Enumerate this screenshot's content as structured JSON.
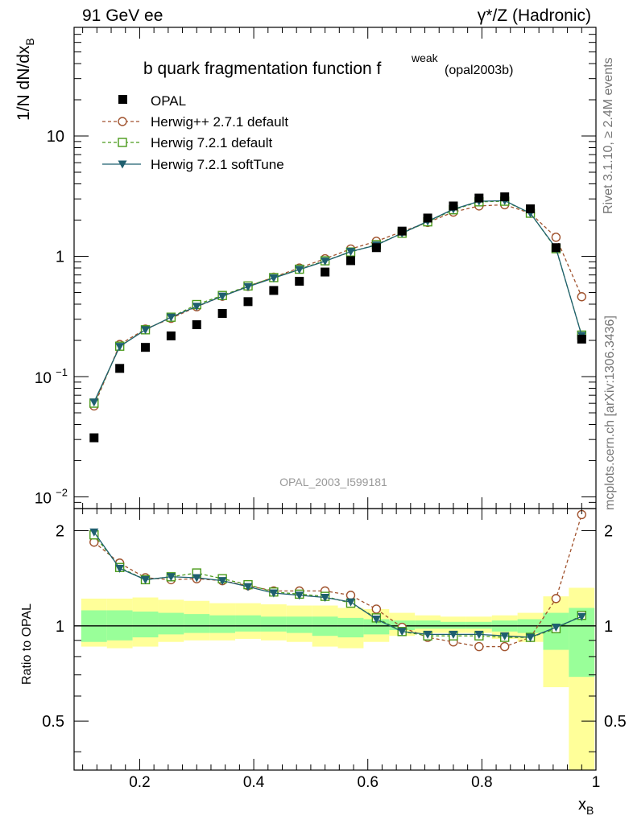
{
  "header": {
    "left": "91 GeV ee",
    "right": "γ*/Z (Hadronic)"
  },
  "side": {
    "rivet": "Rivet 3.1.10, ≥ 2.4M events",
    "mcplots": "mcplots.cern.ch [arXiv:1306.3436]"
  },
  "chart_data": {
    "type": "scatter",
    "title_main": "b quark fragmentation function f",
    "title_sup": "weak",
    "title_sub": "(opal2003b)",
    "analysis_id": "OPAL_2003_I599181",
    "ylabel_top": "1/N dN/dx",
    "ylabel_top_sub": "B",
    "ylabel_bottom": "Ratio to OPAL",
    "xlabel": "x",
    "xlabel_sub": "B",
    "x_ticks": [
      "0.2",
      "0.4",
      "0.6",
      "0.8",
      "1"
    ],
    "y_ticks_top": [
      "1",
      "10"
    ],
    "y_ticks_top_pow": [
      "10",
      "10"
    ],
    "y_ticks_top_pow_exp": [
      "−1",
      "−2"
    ],
    "y_ticks_bottom": [
      "0.5",
      "1",
      "2"
    ],
    "xlim": [
      0.085,
      1.0
    ],
    "ylim_top": [
      0.008,
      80
    ],
    "ylim_bottom": [
      0.35,
      2.35
    ],
    "log_y": true,
    "legend_position": "top-left",
    "x": [
      0.12,
      0.165,
      0.21,
      0.255,
      0.3,
      0.345,
      0.39,
      0.435,
      0.48,
      0.525,
      0.57,
      0.615,
      0.66,
      0.705,
      0.75,
      0.795,
      0.84,
      0.885,
      0.93,
      0.975
    ],
    "band_edges": [
      0.0975,
      0.1425,
      0.1875,
      0.2325,
      0.2775,
      0.3225,
      0.3675,
      0.4125,
      0.4575,
      0.5025,
      0.5475,
      0.5925,
      0.6375,
      0.6825,
      0.7275,
      0.7725,
      0.8175,
      0.8625,
      0.9075,
      0.9525,
      0.9975
    ],
    "data": {
      "name": "OPAL",
      "values": [
        0.031,
        0.117,
        0.175,
        0.218,
        0.27,
        0.335,
        0.42,
        0.52,
        0.62,
        0.74,
        0.92,
        1.18,
        1.62,
        2.08,
        2.62,
        3.05,
        3.12,
        2.48,
        1.18,
        0.205
      ],
      "stat_band": [
        [
          0.89,
          1.12
        ],
        [
          0.9,
          1.12
        ],
        [
          0.92,
          1.11
        ],
        [
          0.94,
          1.1
        ],
        [
          0.95,
          1.09
        ],
        [
          0.95,
          1.08
        ],
        [
          0.96,
          1.08
        ],
        [
          0.96,
          1.07
        ],
        [
          0.95,
          1.07
        ],
        [
          0.93,
          1.07
        ],
        [
          0.92,
          1.06
        ],
        [
          0.94,
          1.05
        ],
        [
          0.97,
          1.04
        ],
        [
          0.98,
          1.04
        ],
        [
          0.98,
          1.03
        ],
        [
          0.98,
          1.03
        ],
        [
          0.96,
          1.04
        ],
        [
          0.95,
          1.05
        ],
        [
          0.84,
          1.1
        ],
        [
          0.69,
          1.14
        ]
      ],
      "total_band": [
        [
          0.86,
          1.22
        ],
        [
          0.85,
          1.22
        ],
        [
          0.86,
          1.23
        ],
        [
          0.89,
          1.21
        ],
        [
          0.9,
          1.2
        ],
        [
          0.9,
          1.18
        ],
        [
          0.91,
          1.18
        ],
        [
          0.9,
          1.17
        ],
        [
          0.89,
          1.16
        ],
        [
          0.86,
          1.16
        ],
        [
          0.85,
          1.14
        ],
        [
          0.89,
          1.13
        ],
        [
          0.93,
          1.1
        ],
        [
          0.95,
          1.08
        ],
        [
          0.95,
          1.07
        ],
        [
          0.95,
          1.07
        ],
        [
          0.91,
          1.08
        ],
        [
          0.89,
          1.1
        ],
        [
          0.64,
          1.24
        ],
        [
          0.35,
          1.32
        ]
      ]
    },
    "series": [
      {
        "name": "Herwig++ 2.7.1 default",
        "color": "#a0522d",
        "marker": "open-circle",
        "line": "dashed",
        "ratio": [
          1.84,
          1.58,
          1.42,
          1.4,
          1.41,
          1.39,
          1.34,
          1.29,
          1.29,
          1.29,
          1.25,
          1.13,
          0.99,
          0.92,
          0.89,
          0.86,
          0.86,
          0.92,
          1.22,
          2.25
        ]
      },
      {
        "name": "Herwig 7.2.1 default",
        "color": "#4a9a1a",
        "marker": "open-square",
        "line": "dashed",
        "ratio": [
          1.94,
          1.53,
          1.4,
          1.43,
          1.47,
          1.41,
          1.35,
          1.28,
          1.26,
          1.24,
          1.18,
          1.06,
          0.96,
          0.93,
          0.93,
          0.93,
          0.92,
          0.92,
          0.98,
          1.08
        ]
      },
      {
        "name": "Herwig 7.2.1 softTune",
        "color": "#1f5f6f",
        "marker": "filled-triangle-down",
        "line": "solid",
        "ratio": [
          1.98,
          1.52,
          1.4,
          1.43,
          1.42,
          1.39,
          1.33,
          1.27,
          1.25,
          1.23,
          1.19,
          1.05,
          0.96,
          0.94,
          0.94,
          0.94,
          0.93,
          0.92,
          0.99,
          1.07
        ]
      }
    ]
  }
}
